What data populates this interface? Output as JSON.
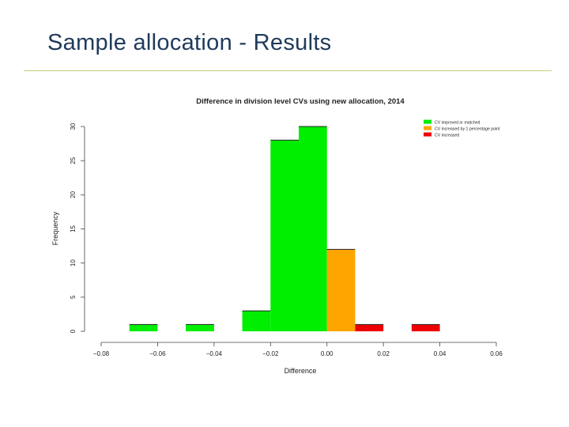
{
  "slide": {
    "title": "Sample allocation - Results"
  },
  "chart_data": {
    "type": "bar",
    "title": "Difference in division level CVs using new allocation, 2014",
    "xlabel": "Difference",
    "ylabel": "Frequency",
    "xlim": [
      -0.08,
      0.06
    ],
    "ylim": [
      0,
      30
    ],
    "x_ticks": [
      "-0.08",
      "-0.06",
      "-0.04",
      "-0.02",
      "0.00",
      "0.02",
      "0.04",
      "0.06"
    ],
    "y_ticks": [
      "0",
      "5",
      "10",
      "15",
      "20",
      "25",
      "30"
    ],
    "bin_width": 0.01,
    "bins": [
      {
        "start": -0.07,
        "end": -0.06,
        "value": 1,
        "group": 0
      },
      {
        "start": -0.05,
        "end": -0.04,
        "value": 1,
        "group": 0
      },
      {
        "start": -0.03,
        "end": -0.02,
        "value": 3,
        "group": 0
      },
      {
        "start": -0.02,
        "end": -0.01,
        "value": 28,
        "group": 0
      },
      {
        "start": -0.01,
        "end": 0.0,
        "value": 30,
        "group": 0
      },
      {
        "start": 0.0,
        "end": 0.01,
        "value": 12,
        "group": 1
      },
      {
        "start": 0.01,
        "end": 0.02,
        "value": 1,
        "group": 2
      },
      {
        "start": 0.03,
        "end": 0.04,
        "value": 1,
        "group": 2
      }
    ],
    "legend": {
      "position": "top-right",
      "entries": [
        {
          "label": "CV improved or matched",
          "color": "#00ee00"
        },
        {
          "label": "CV increased by 1 percentage point",
          "color": "#ffa500"
        },
        {
          "label": "CV increased",
          "color": "#ee0000"
        }
      ]
    },
    "grid": false
  }
}
